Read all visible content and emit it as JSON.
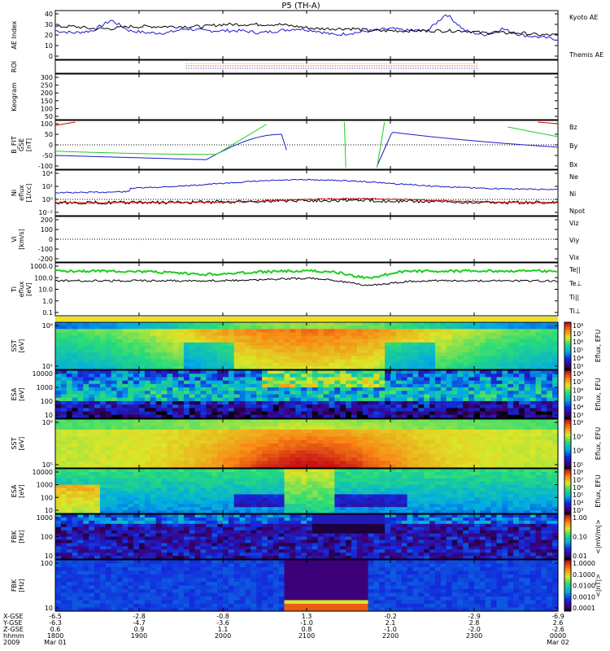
{
  "title": "P5 (TH-A)",
  "colors": {
    "blue": "#1a1acc",
    "black": "#000000",
    "red": "#cc0000",
    "green": "#22cc22",
    "orange": "#e08000"
  },
  "chart_data": [
    {
      "type": "line",
      "panel": "ae",
      "ylabel": "AE Index",
      "yticks": [
        "40",
        "30",
        "20",
        "10",
        "0"
      ],
      "ylim": [
        0,
        40
      ],
      "series": [
        {
          "name": "Kyoto AE",
          "color": "#1a1acc",
          "values": [
            24,
            22,
            24,
            34,
            24,
            22,
            22,
            26,
            24,
            24,
            24,
            22,
            24,
            26,
            24,
            20,
            22,
            24,
            26,
            24,
            24,
            40,
            24,
            20,
            26,
            20,
            18,
            16
          ]
        },
        {
          "name": "Themis AE",
          "color": "#000000",
          "values": [
            28,
            28,
            26,
            26,
            28,
            28,
            28,
            28,
            28,
            30,
            30,
            30,
            30,
            28,
            26,
            26,
            26,
            24,
            24,
            24,
            24,
            24,
            24,
            22,
            22,
            22,
            20,
            20
          ]
        }
      ]
    },
    {
      "type": "line",
      "panel": "roi",
      "ylabel": "ROI"
    },
    {
      "type": "line",
      "panel": "keogram",
      "ylabel": "Keogram",
      "yticks": [
        "300",
        "250",
        "200",
        "150",
        "100",
        "50"
      ]
    },
    {
      "type": "line",
      "panel": "bfield",
      "ylabel": "B_FIT\nGSE\n[nT]",
      "yticks": [
        "100",
        "50",
        "0",
        "-50",
        "-100"
      ],
      "ylim": [
        -100,
        100
      ],
      "series": [
        {
          "name": "Bz",
          "color": "#cc0000"
        },
        {
          "name": "By",
          "color": "#22cc22"
        },
        {
          "name": "Bx",
          "color": "#1a1acc"
        }
      ]
    },
    {
      "type": "line",
      "panel": "density",
      "ylabel": "Ni\neflux\n[1/cc]",
      "yticks": [
        "10⁴",
        "10²",
        "10⁰",
        "10⁻²"
      ],
      "series": [
        {
          "name": "Ne",
          "color": "#cc0000"
        },
        {
          "name": "Ni",
          "color": "#000000"
        },
        {
          "name": "Npot",
          "color": "#1a1acc"
        }
      ]
    },
    {
      "type": "line",
      "panel": "velocity",
      "ylabel": "Vi\n[km/s]",
      "yticks": [
        "200",
        "100",
        "0",
        "-100",
        "-200"
      ],
      "series": [
        {
          "name": "Viz",
          "color": "#cc0000"
        },
        {
          "name": "Viy",
          "color": "#22cc22"
        },
        {
          "name": "Vix",
          "color": "#1a1acc"
        }
      ]
    },
    {
      "type": "line",
      "panel": "temp",
      "ylabel": "Ti\neflux\n[eV]",
      "yticks": [
        "1000.0",
        "100.0",
        "10.0",
        "1.0",
        "0.1"
      ],
      "series": [
        {
          "name": "Te||",
          "color": "#000000"
        },
        {
          "name": "Te⊥",
          "color": "#cc0000"
        },
        {
          "name": "Ti||",
          "color": "#22cc22"
        },
        {
          "name": "Ti⊥",
          "color": "#1a1acc"
        }
      ]
    },
    {
      "type": "heatmap",
      "panel": "sst_i",
      "ylabel": "SST\n[eV]",
      "yticks": [
        "10⁶",
        "10⁵"
      ],
      "cbar": "Eflux, EFU",
      "cticks": [
        "10⁸",
        "10⁷",
        "10⁶",
        "10⁵",
        "10⁴",
        "10³"
      ]
    },
    {
      "type": "heatmap",
      "panel": "esa_i",
      "ylabel": "ESA\n[eV]",
      "yticks": [
        "10000",
        "1000",
        "100",
        "10"
      ],
      "cbar": "Eflux, EFU",
      "cticks": [
        "10⁸",
        "10⁷",
        "10⁶",
        "10⁵",
        "10⁴",
        "10³"
      ]
    },
    {
      "type": "heatmap",
      "panel": "sst_e",
      "ylabel": "SST\n[eV]",
      "yticks": [
        "10⁶",
        "10⁵"
      ],
      "cbar": "Eflux, EFU",
      "cticks": [
        "10⁸",
        "10⁷",
        "10⁶",
        "10⁵"
      ]
    },
    {
      "type": "heatmap",
      "panel": "esa_e",
      "ylabel": "ESA\n[eV]",
      "yticks": [
        "10000",
        "1000",
        "100",
        "10"
      ],
      "cbar": "Eflux, EFU",
      "cticks": [
        "10⁸",
        "10⁷",
        "10⁶",
        "10⁵",
        "10⁴",
        "10³"
      ]
    },
    {
      "type": "heatmap",
      "panel": "fbk_e",
      "ylabel": "FBK\n[Hz]",
      "yticks": [
        "1000",
        "100",
        "10"
      ],
      "cbar": "<|mV/m|>",
      "cticks": [
        "1.00",
        "0.10",
        "0.01"
      ]
    },
    {
      "type": "heatmap",
      "panel": "fbk_b",
      "ylabel": "FBK\n[Hz]",
      "yticks": [
        "100",
        "10"
      ],
      "cbar": "<|nT|>",
      "cticks": [
        "1.0000",
        "0.1000",
        "0.0100",
        "0.0010",
        "0.0001"
      ]
    }
  ],
  "xaxis": {
    "row_labels": [
      "X-GSE",
      "Y-GSE",
      "Z-GSE",
      "hhmm",
      "2009"
    ],
    "columns": [
      [
        "-6.5",
        "-6.3",
        "0.6",
        "1800",
        "Mar 01"
      ],
      [
        "-2.8",
        "-4.7",
        "0.9",
        "1900",
        ""
      ],
      [
        "-0.8",
        "-3.6",
        "1.1",
        "2000",
        ""
      ],
      [
        "1.3",
        "-1.0",
        "0.8",
        "2100",
        ""
      ],
      [
        "-0.2",
        "2.1",
        "-1.0",
        "2200",
        ""
      ],
      [
        "-2.9",
        "2.8",
        "-2.0",
        "2300",
        ""
      ],
      [
        "-6.9",
        "2.6",
        "-2.6",
        "0000",
        "Mar 02"
      ]
    ]
  },
  "legend": {
    "ae": [
      "Kyoto AE",
      "Themis AE"
    ],
    "b": [
      "Bz",
      "By",
      "Bx"
    ],
    "n": [
      "Ne",
      "Ni",
      "Npot"
    ],
    "v": [
      "Viz",
      "Viy",
      "Vix"
    ],
    "t": [
      "Te||",
      "Te⊥",
      "Ti||",
      "Ti⊥"
    ]
  }
}
